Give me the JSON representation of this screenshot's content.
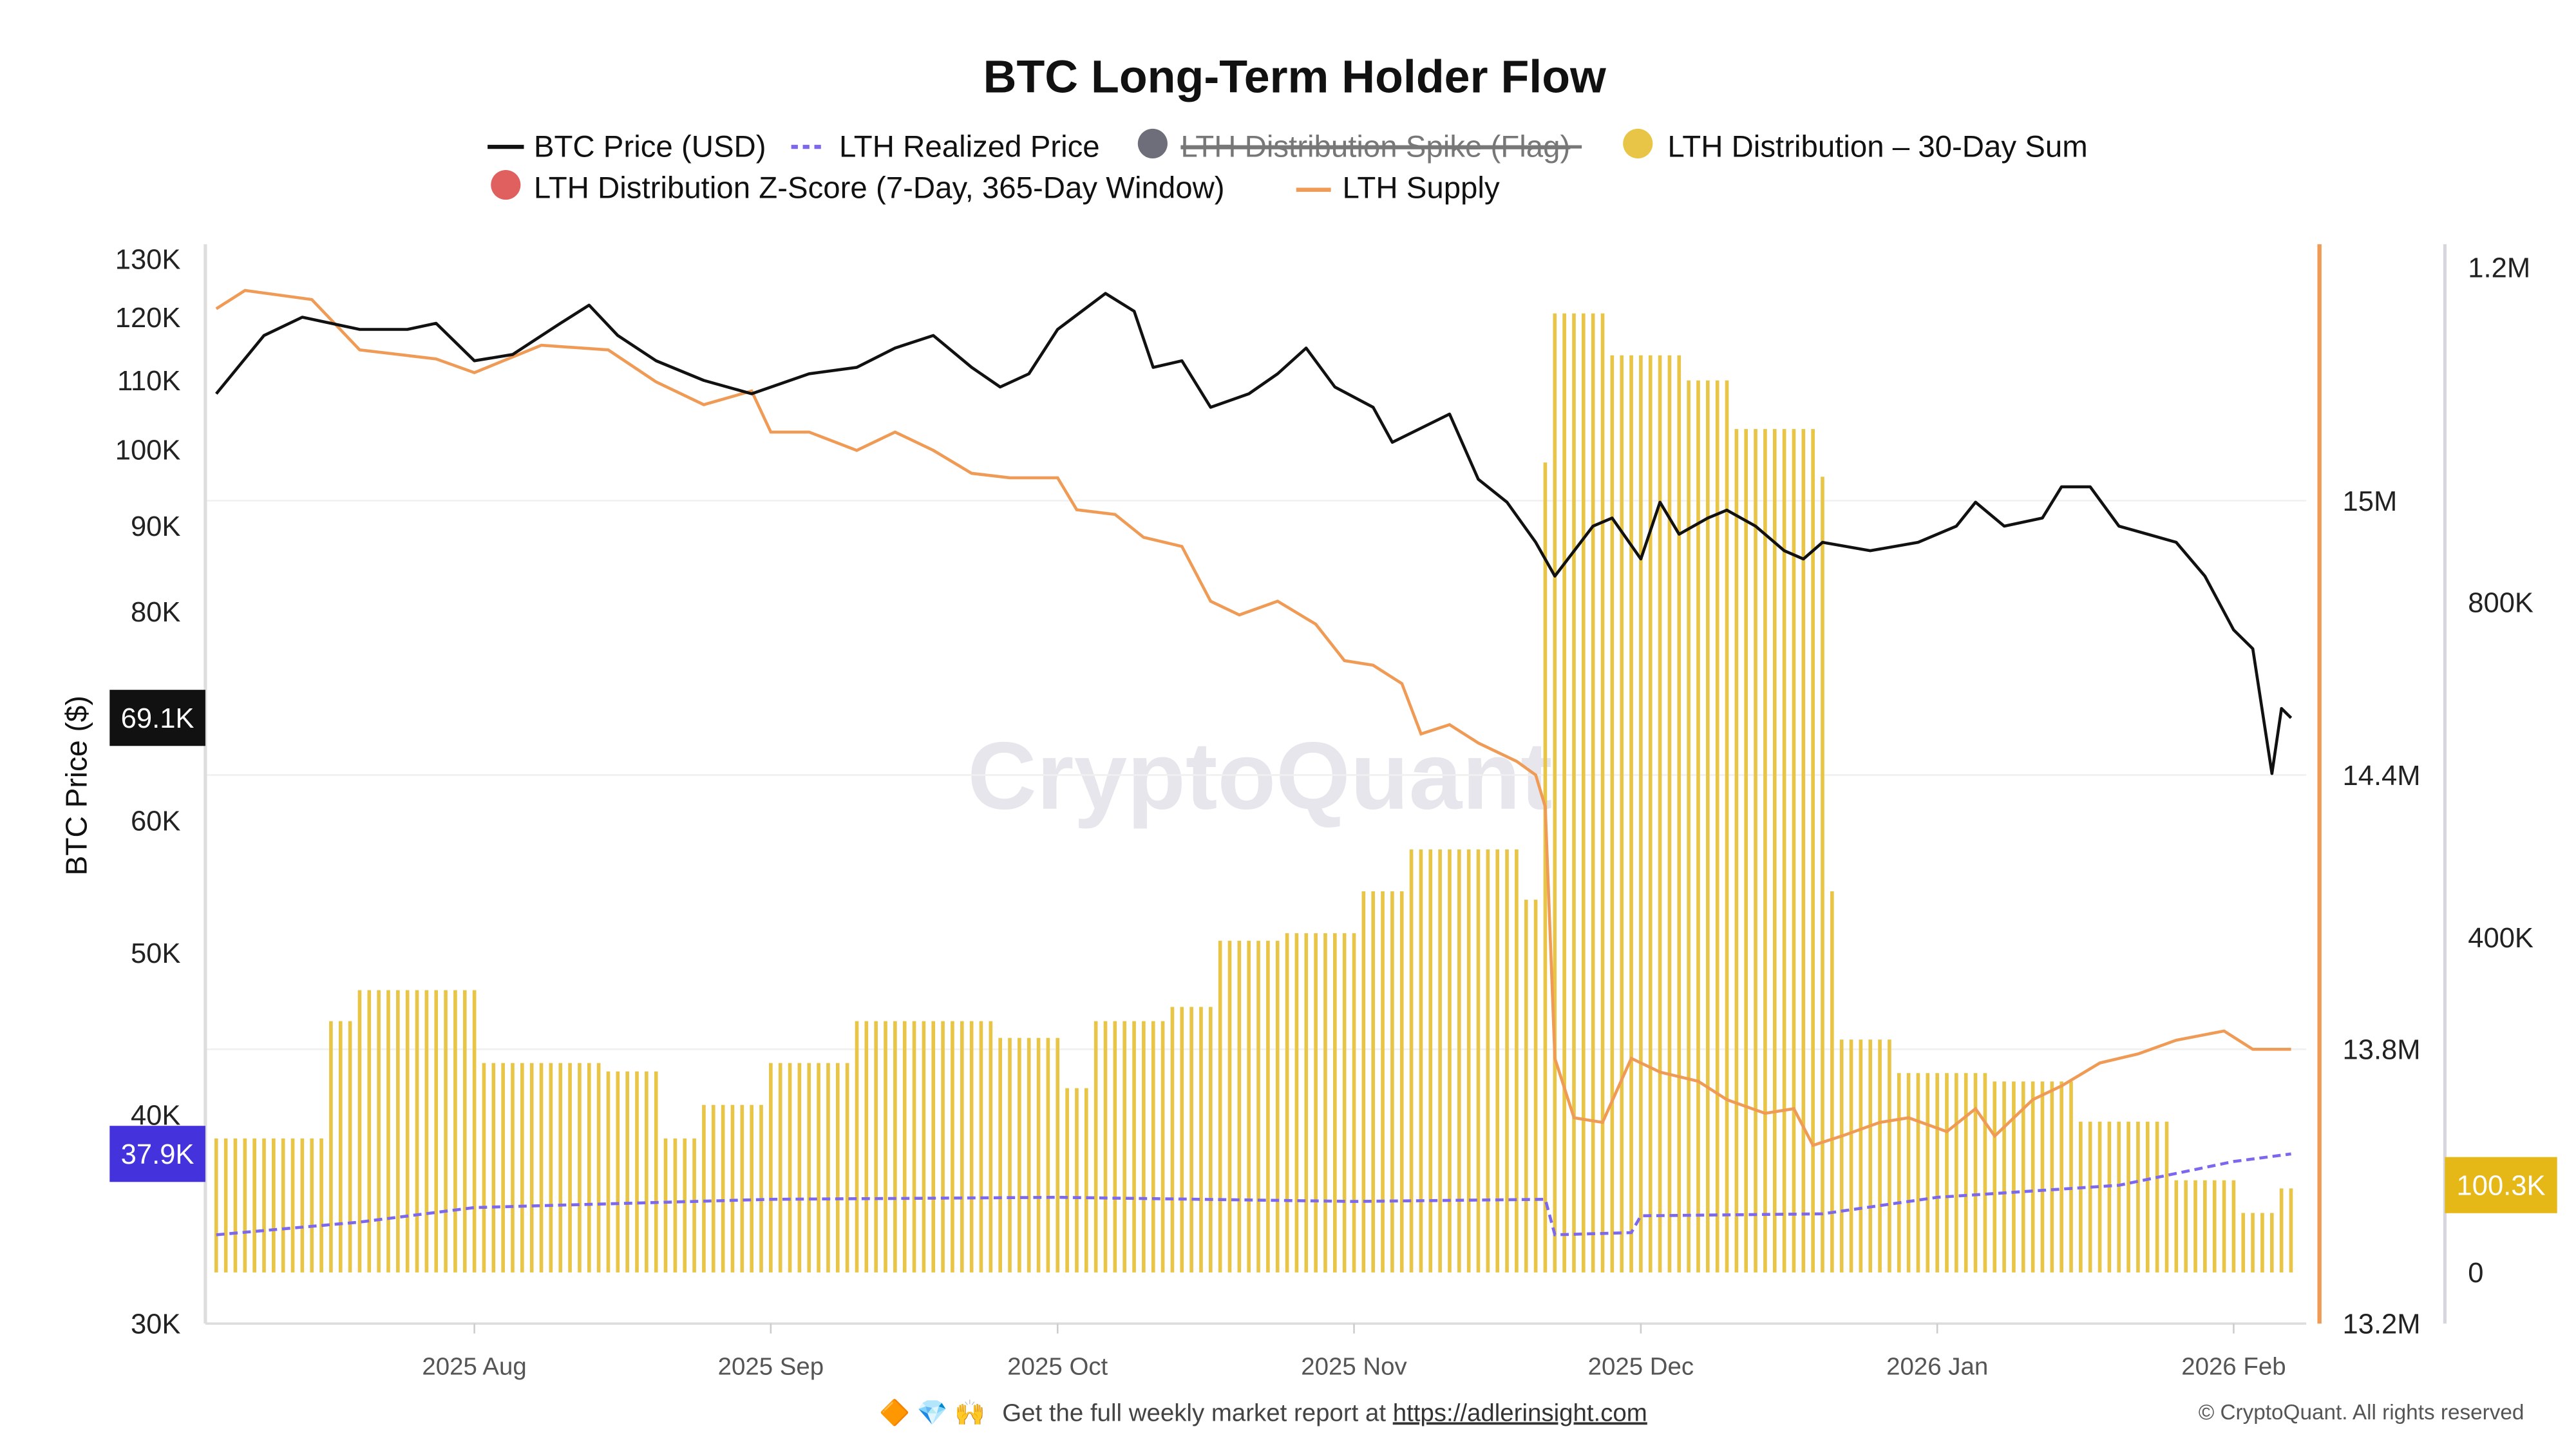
{
  "chart_data": {
    "type": "line",
    "title": "BTC Long-Term Holder Flow",
    "legend": [
      {
        "label": "BTC Price (USD)",
        "color": "#111111",
        "style": "line"
      },
      {
        "label": "LTH Realized Price",
        "color": "#7b68ee",
        "style": "dashed"
      },
      {
        "label": "LTH Distribution Spike (Flag)",
        "color": "#6e6e7a",
        "style": "dot",
        "hidden": true
      },
      {
        "label": "LTH Distribution – 30-Day Sum",
        "color": "#e8c547",
        "style": "dot"
      },
      {
        "label": "LTH Distribution Z-Score (7-Day, 365-Day Window)",
        "color": "#e06060",
        "style": "dot"
      },
      {
        "label": "LTH Supply",
        "color": "#ef9a55",
        "style": "line"
      }
    ],
    "legend_placement": "top-center",
    "x_ticks": [
      "2025 Aug",
      "2025 Sep",
      "2025 Oct",
      "2025 Nov",
      "2025 Dec",
      "2026 Jan",
      "2026 Feb"
    ],
    "x_tick_dates": [
      "2025-08-01",
      "2025-09-01",
      "2025-10-01",
      "2025-11-01",
      "2025-12-01",
      "2026-01-01",
      "2026-02-01"
    ],
    "x_range": [
      "2025-07-05",
      "2026-02-08"
    ],
    "y_left": {
      "label": "BTC Price ($)",
      "scale": "log",
      "range": [
        30000,
        130000
      ],
      "ticks": [
        "130K",
        "120K",
        "110K",
        "100K",
        "90K",
        "80K",
        "60K",
        "50K",
        "40K",
        "30K"
      ],
      "tick_values": [
        130000,
        120000,
        110000,
        100000,
        90000,
        80000,
        60000,
        50000,
        40000,
        30000
      ]
    },
    "y_supply": {
      "range": [
        13.2,
        15.4
      ],
      "unit": "M",
      "ticks": [
        "15M",
        "14.4M",
        "13.8M",
        "13.2M"
      ],
      "tick_values": [
        15.0,
        14.4,
        13.8,
        13.2
      ]
    },
    "y_distribution": {
      "range": [
        0,
        1200000
      ],
      "ticks": [
        "1.2M",
        "800K",
        "400K",
        "0"
      ],
      "tick_values": [
        1200000,
        800000,
        400000,
        0
      ]
    },
    "grid": true,
    "last_value_labels": {
      "price": "69.1K",
      "realized": "37.9K",
      "distribution": "100.3K"
    },
    "label_colors": {
      "price": "#111111",
      "realized": "#4433dd",
      "distribution": "#e6b817"
    },
    "btc_price": [
      [
        "2025-07-05",
        108000
      ],
      [
        "2025-07-10",
        117000
      ],
      [
        "2025-07-14",
        120000
      ],
      [
        "2025-07-20",
        118000
      ],
      [
        "2025-07-25",
        118000
      ],
      [
        "2025-07-28",
        119000
      ],
      [
        "2025-08-01",
        113000
      ],
      [
        "2025-08-05",
        114000
      ],
      [
        "2025-08-10",
        119000
      ],
      [
        "2025-08-13",
        122000
      ],
      [
        "2025-08-16",
        117000
      ],
      [
        "2025-08-20",
        113000
      ],
      [
        "2025-08-25",
        110000
      ],
      [
        "2025-08-30",
        108000
      ],
      [
        "2025-09-05",
        111000
      ],
      [
        "2025-09-10",
        112000
      ],
      [
        "2025-09-14",
        115000
      ],
      [
        "2025-09-18",
        117000
      ],
      [
        "2025-09-22",
        112000
      ],
      [
        "2025-09-25",
        109000
      ],
      [
        "2025-09-28",
        111000
      ],
      [
        "2025-10-01",
        118000
      ],
      [
        "2025-10-06",
        124000
      ],
      [
        "2025-10-09",
        121000
      ],
      [
        "2025-10-11",
        112000
      ],
      [
        "2025-10-14",
        113000
      ],
      [
        "2025-10-17",
        106000
      ],
      [
        "2025-10-21",
        108000
      ],
      [
        "2025-10-24",
        111000
      ],
      [
        "2025-10-27",
        115000
      ],
      [
        "2025-10-30",
        109000
      ],
      [
        "2025-11-03",
        106000
      ],
      [
        "2025-11-05",
        101000
      ],
      [
        "2025-11-11",
        105000
      ],
      [
        "2025-11-14",
        96000
      ],
      [
        "2025-11-17",
        93000
      ],
      [
        "2025-11-20",
        88000
      ],
      [
        "2025-11-22",
        84000
      ],
      [
        "2025-11-26",
        90000
      ],
      [
        "2025-11-28",
        91000
      ],
      [
        "2025-12-01",
        86000
      ],
      [
        "2025-12-03",
        93000
      ],
      [
        "2025-12-05",
        89000
      ],
      [
        "2025-12-08",
        91000
      ],
      [
        "2025-12-10",
        92000
      ],
      [
        "2025-12-13",
        90000
      ],
      [
        "2025-12-16",
        87000
      ],
      [
        "2025-12-18",
        86000
      ],
      [
        "2025-12-20",
        88000
      ],
      [
        "2025-12-25",
        87000
      ],
      [
        "2025-12-30",
        88000
      ],
      [
        "2026-01-03",
        90000
      ],
      [
        "2026-01-05",
        93000
      ],
      [
        "2026-01-08",
        90000
      ],
      [
        "2026-01-12",
        91000
      ],
      [
        "2026-01-14",
        95000
      ],
      [
        "2026-01-17",
        95000
      ],
      [
        "2026-01-20",
        90000
      ],
      [
        "2026-01-23",
        89000
      ],
      [
        "2026-01-26",
        88000
      ],
      [
        "2026-01-29",
        84000
      ],
      [
        "2026-02-01",
        78000
      ],
      [
        "2026-02-03",
        76000
      ],
      [
        "2026-02-05",
        64000
      ],
      [
        "2026-02-06",
        70000
      ],
      [
        "2026-02-07",
        69100
      ]
    ],
    "lth_realized_price": [
      [
        "2025-07-05",
        33900
      ],
      [
        "2025-07-20",
        34500
      ],
      [
        "2025-08-01",
        35200
      ],
      [
        "2025-09-01",
        35600
      ],
      [
        "2025-10-01",
        35700
      ],
      [
        "2025-11-01",
        35500
      ],
      [
        "2025-11-21",
        35600
      ],
      [
        "2025-11-22",
        33900
      ],
      [
        "2025-11-30",
        34000
      ],
      [
        "2025-12-01",
        34800
      ],
      [
        "2025-12-20",
        34900
      ],
      [
        "2026-01-01",
        35700
      ],
      [
        "2026-01-20",
        36300
      ],
      [
        "2026-02-01",
        37500
      ],
      [
        "2026-02-07",
        37900
      ]
    ],
    "lth_supply_millions": [
      [
        "2025-07-05",
        15.42
      ],
      [
        "2025-07-08",
        15.46
      ],
      [
        "2025-07-15",
        15.44
      ],
      [
        "2025-07-20",
        15.33
      ],
      [
        "2025-07-28",
        15.31
      ],
      [
        "2025-08-01",
        15.28
      ],
      [
        "2025-08-08",
        15.34
      ],
      [
        "2025-08-15",
        15.33
      ],
      [
        "2025-08-20",
        15.26
      ],
      [
        "2025-08-25",
        15.21
      ],
      [
        "2025-08-30",
        15.24
      ],
      [
        "2025-09-01",
        15.15
      ],
      [
        "2025-09-05",
        15.15
      ],
      [
        "2025-09-10",
        15.11
      ],
      [
        "2025-09-14",
        15.15
      ],
      [
        "2025-09-18",
        15.11
      ],
      [
        "2025-09-22",
        15.06
      ],
      [
        "2025-09-26",
        15.05
      ],
      [
        "2025-10-01",
        15.05
      ],
      [
        "2025-10-03",
        14.98
      ],
      [
        "2025-10-07",
        14.97
      ],
      [
        "2025-10-10",
        14.92
      ],
      [
        "2025-10-14",
        14.9
      ],
      [
        "2025-10-17",
        14.78
      ],
      [
        "2025-10-20",
        14.75
      ],
      [
        "2025-10-24",
        14.78
      ],
      [
        "2025-10-28",
        14.73
      ],
      [
        "2025-10-31",
        14.65
      ],
      [
        "2025-11-03",
        14.64
      ],
      [
        "2025-11-06",
        14.6
      ],
      [
        "2025-11-08",
        14.49
      ],
      [
        "2025-11-11",
        14.51
      ],
      [
        "2025-11-14",
        14.47
      ],
      [
        "2025-11-18",
        14.43
      ],
      [
        "2025-11-20",
        14.4
      ],
      [
        "2025-11-21",
        14.33
      ],
      [
        "2025-11-22",
        13.78
      ],
      [
        "2025-11-24",
        13.65
      ],
      [
        "2025-11-27",
        13.64
      ],
      [
        "2025-11-30",
        13.78
      ],
      [
        "2025-12-03",
        13.75
      ],
      [
        "2025-12-07",
        13.73
      ],
      [
        "2025-12-10",
        13.69
      ],
      [
        "2025-12-14",
        13.66
      ],
      [
        "2025-12-17",
        13.67
      ],
      [
        "2025-12-19",
        13.59
      ],
      [
        "2025-12-22",
        13.61
      ],
      [
        "2025-12-26",
        13.64
      ],
      [
        "2025-12-29",
        13.65
      ],
      [
        "2026-01-02",
        13.62
      ],
      [
        "2026-01-05",
        13.67
      ],
      [
        "2026-01-07",
        13.61
      ],
      [
        "2026-01-11",
        13.69
      ],
      [
        "2026-01-14",
        13.72
      ],
      [
        "2026-01-18",
        13.77
      ],
      [
        "2026-01-22",
        13.79
      ],
      [
        "2026-01-26",
        13.82
      ],
      [
        "2026-01-31",
        13.84
      ],
      [
        "2026-02-03",
        13.8
      ],
      [
        "2026-02-07",
        13.8
      ]
    ],
    "lth_distribution_30d_sum": [
      {
        "start": "2025-07-05",
        "end": "2025-07-16",
        "value": 160000
      },
      {
        "start": "2025-07-17",
        "end": "2025-07-19",
        "value": 300000
      },
      {
        "start": "2025-07-20",
        "end": "2025-08-01",
        "value": 337000
      },
      {
        "start": "2025-08-02",
        "end": "2025-08-14",
        "value": 250000
      },
      {
        "start": "2025-08-15",
        "end": "2025-08-20",
        "value": 240000
      },
      {
        "start": "2025-08-21",
        "end": "2025-08-24",
        "value": 160000
      },
      {
        "start": "2025-08-25",
        "end": "2025-08-31",
        "value": 200000
      },
      {
        "start": "2025-09-01",
        "end": "2025-09-09",
        "value": 250000
      },
      {
        "start": "2025-09-10",
        "end": "2025-09-24",
        "value": 300000
      },
      {
        "start": "2025-09-25",
        "end": "2025-10-01",
        "value": 280000
      },
      {
        "start": "2025-10-02",
        "end": "2025-10-04",
        "value": 220000
      },
      {
        "start": "2025-10-05",
        "end": "2025-10-12",
        "value": 300000
      },
      {
        "start": "2025-10-13",
        "end": "2025-10-17",
        "value": 317000
      },
      {
        "start": "2025-10-18",
        "end": "2025-10-24",
        "value": 396000
      },
      {
        "start": "2025-10-25",
        "end": "2025-11-01",
        "value": 405000
      },
      {
        "start": "2025-11-02",
        "end": "2025-11-06",
        "value": 455000
      },
      {
        "start": "2025-11-07",
        "end": "2025-11-18",
        "value": 505000
      },
      {
        "start": "2025-11-19",
        "end": "2025-11-20",
        "value": 445000
      },
      {
        "start": "2025-11-21",
        "end": "2025-11-21",
        "value": 967000
      },
      {
        "start": "2025-11-22",
        "end": "2025-11-27",
        "value": 1145000
      },
      {
        "start": "2025-11-28",
        "end": "2025-12-05",
        "value": 1095000
      },
      {
        "start": "2025-12-06",
        "end": "2025-12-10",
        "value": 1065000
      },
      {
        "start": "2025-12-11",
        "end": "2025-12-19",
        "value": 1007000
      },
      {
        "start": "2025-12-20",
        "end": "2025-12-20",
        "value": 950000
      },
      {
        "start": "2025-12-21",
        "end": "2025-12-21",
        "value": 455000
      },
      {
        "start": "2025-12-22",
        "end": "2025-12-27",
        "value": 278000
      },
      {
        "start": "2025-12-28",
        "end": "2026-01-06",
        "value": 238000
      },
      {
        "start": "2026-01-07",
        "end": "2026-01-15",
        "value": 228000
      },
      {
        "start": "2026-01-16",
        "end": "2026-01-25",
        "value": 180000
      },
      {
        "start": "2026-01-26",
        "end": "2026-02-01",
        "value": 110000
      },
      {
        "start": "2026-02-02",
        "end": "2026-02-05",
        "value": 71000
      },
      {
        "start": "2026-02-06",
        "end": "2026-02-07",
        "value": 100300
      }
    ]
  },
  "watermark": "CryptoQuant",
  "footer": {
    "icons": [
      "orange-diamond-icon",
      "gem-icon",
      "raised-hands-icon"
    ],
    "emoji": "🔶 💎 🙌",
    "text": "Get the full weekly market report at ",
    "link": "https://adlerinsight.com",
    "copyright": "© CryptoQuant. All rights reserved"
  }
}
